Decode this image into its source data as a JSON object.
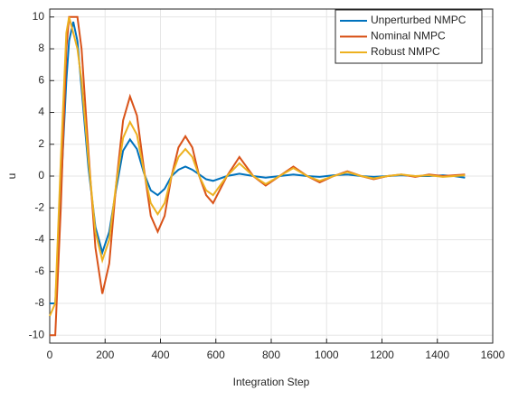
{
  "chart_data": {
    "type": "line",
    "xlabel": "Integration Step",
    "ylabel": "u",
    "x": [
      0,
      20,
      40,
      60,
      70,
      85,
      100,
      115,
      140,
      165,
      190,
      215,
      240,
      265,
      290,
      315,
      340,
      365,
      390,
      415,
      440,
      465,
      490,
      515,
      540,
      565,
      590,
      640,
      685,
      735,
      780,
      830,
      880,
      930,
      975,
      1025,
      1075,
      1125,
      1170,
      1220,
      1270,
      1320,
      1370,
      1420,
      1460,
      1500
    ],
    "series": [
      {
        "name": "Unperturbed NMPC",
        "color": "#0072bd",
        "values": [
          -8,
          -8,
          -1,
          6,
          8.5,
          9.7,
          8.5,
          5.5,
          0.5,
          -3.2,
          -4.8,
          -3.5,
          -0.8,
          1.6,
          2.3,
          1.7,
          0.2,
          -0.9,
          -1.2,
          -0.8,
          0,
          0.4,
          0.6,
          0.4,
          0.1,
          -0.2,
          -0.3,
          0,
          0.15,
          0,
          -0.1,
          0,
          0.1,
          0,
          -0.05,
          0.05,
          0.1,
          0,
          -0.05,
          0,
          0.05,
          0,
          0,
          0.05,
          0,
          -0.1
        ]
      },
      {
        "name": "Nominal NMPC",
        "color": "#d95319",
        "values": [
          -10,
          -10,
          -2,
          8,
          10,
          10,
          10,
          8,
          1.5,
          -4.5,
          -7.4,
          -5.5,
          -0.5,
          3.5,
          5,
          3.8,
          0.5,
          -2.5,
          -3.5,
          -2.5,
          0,
          1.8,
          2.5,
          1.8,
          0,
          -1.2,
          -1.7,
          0,
          1.2,
          0,
          -0.6,
          0,
          0.6,
          0,
          -0.4,
          0,
          0.3,
          0,
          -0.2,
          0,
          0.1,
          -0.05,
          0.1,
          0,
          0.05,
          0.1
        ]
      },
      {
        "name": "Robust NMPC",
        "color": "#edb120",
        "values": [
          -8.8,
          -8,
          1,
          9,
          10,
          9,
          8,
          6,
          1,
          -3.5,
          -5.3,
          -4,
          -0.5,
          2.4,
          3.4,
          2.6,
          0.3,
          -1.7,
          -2.4,
          -1.7,
          0,
          1.2,
          1.7,
          1.2,
          0,
          -0.9,
          -1.2,
          0,
          0.8,
          0,
          -0.5,
          0,
          0.5,
          0,
          -0.3,
          0,
          0.25,
          0,
          -0.15,
          0,
          0.1,
          0,
          0.05,
          -0.05,
          0,
          0.05
        ]
      }
    ],
    "xlim": [
      0,
      1600
    ],
    "xticks": [
      0,
      200,
      400,
      600,
      800,
      1000,
      1200,
      1400,
      1600
    ],
    "ylim": [
      -10.5,
      10.5
    ],
    "yticks": [
      -10,
      -8,
      -6,
      -4,
      -2,
      0,
      2,
      4,
      6,
      8,
      10
    ],
    "grid": true,
    "legend": "top-right"
  }
}
